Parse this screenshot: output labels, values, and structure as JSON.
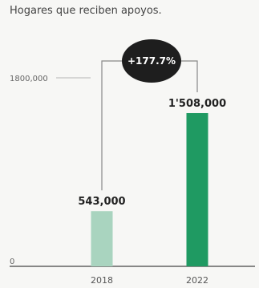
{
  "subtitle": "Hogares que reciben apoyos.",
  "chart_data": {
    "type": "bar",
    "categories": [
      "2018",
      "2022"
    ],
    "values": [
      543000,
      1508000
    ],
    "data_labels": [
      "543,000",
      "1'508,000"
    ],
    "y_ticks": [
      {
        "value": 0,
        "label": "0"
      },
      {
        "value": 1800000,
        "label": "1800,000"
      }
    ],
    "ylim": [
      0,
      1800000
    ],
    "change_label": "+177.7%",
    "colors": {
      "bar_2018": "#a9d4bf",
      "bar_2022": "#1f9a62",
      "badge": "#1e1e1e",
      "connector": "#888888"
    }
  }
}
